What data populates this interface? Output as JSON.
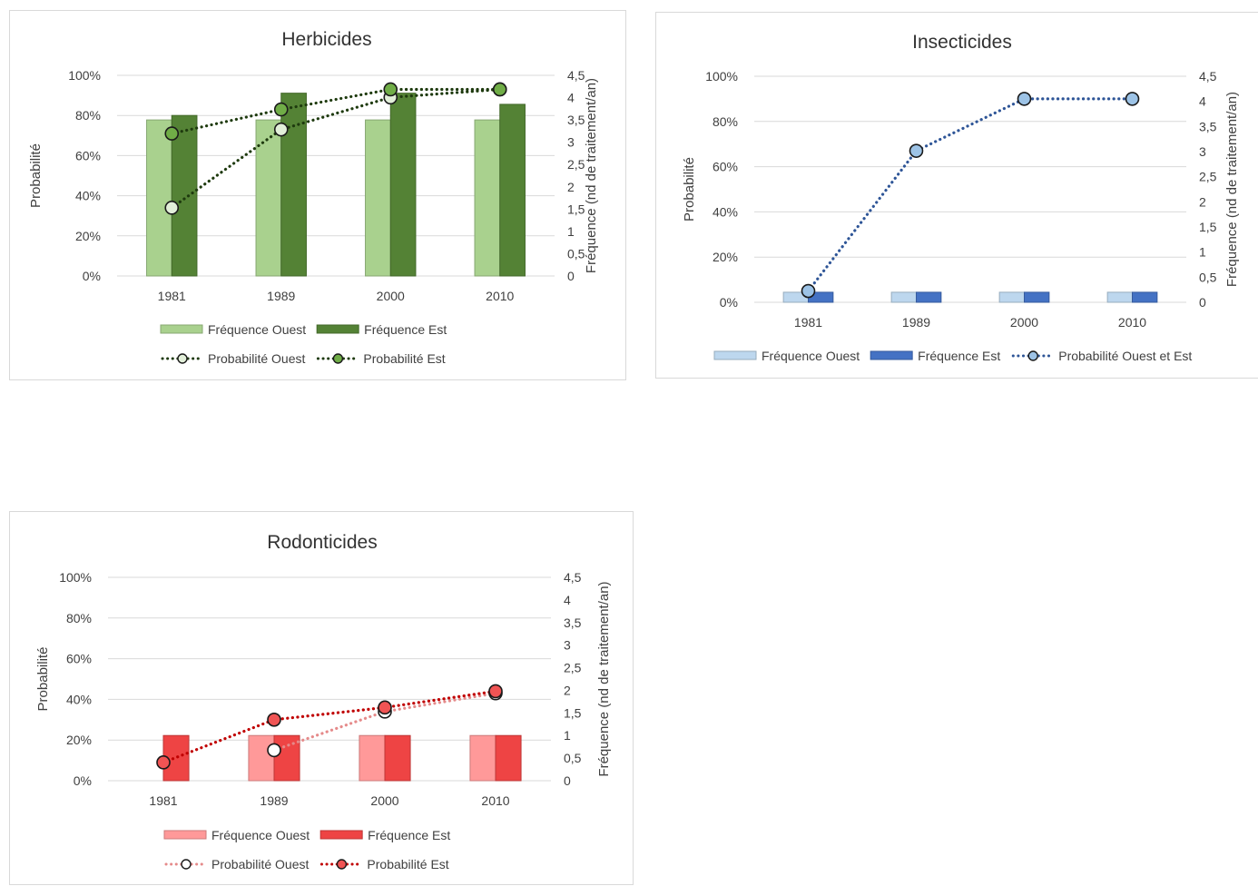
{
  "chart_data": [
    {
      "type": "bar",
      "title": "Herbicides",
      "ylabel": "Probabilité",
      "y2label": "Fréquence (nd de traitement/an)",
      "categories": [
        "1981",
        "1989",
        "2000",
        "2010"
      ],
      "ylim": [
        0,
        100
      ],
      "y_ticks": [
        "0%",
        "20%",
        "40%",
        "60%",
        "80%",
        "100%"
      ],
      "y2lim": [
        0,
        4.5
      ],
      "y2_ticks": [
        "0",
        "0,5",
        "1",
        "1,5",
        "2",
        "2,5",
        "3",
        "3,5",
        "4",
        "4,5"
      ],
      "series": [
        {
          "name": "Fréquence Ouest",
          "kind": "bar",
          "axis": "y2",
          "color": "#a9d18e",
          "values": [
            3.5,
            3.5,
            3.5,
            3.5
          ]
        },
        {
          "name": "Fréquence Est",
          "kind": "bar",
          "axis": "y2",
          "color": "#548235",
          "values": [
            3.6,
            4.1,
            4.1,
            3.85
          ]
        },
        {
          "name": "Probabilité Ouest",
          "kind": "line",
          "axis": "y",
          "color": "#1e3a0e",
          "marker": "#e2efd9",
          "values": [
            34,
            73,
            89,
            93
          ]
        },
        {
          "name": "Probabilité Est",
          "kind": "line",
          "axis": "y",
          "color": "#1e3a0e",
          "marker": "#70ad47",
          "values": [
            71,
            83,
            93,
            93
          ]
        }
      ],
      "legend_rows": [
        [
          "Fréquence Ouest",
          "Fréquence Est"
        ],
        [
          "Probabilité Ouest",
          "Probabilité Est"
        ]
      ],
      "legend": "bottom",
      "grid": true
    },
    {
      "type": "bar",
      "title": "Insecticides",
      "ylabel": "Probabilité",
      "y2label": "Fréquence (nd de traitement/an)",
      "categories": [
        "1981",
        "1989",
        "2000",
        "2010"
      ],
      "ylim": [
        0,
        100
      ],
      "y_ticks": [
        "0%",
        "20%",
        "40%",
        "60%",
        "80%",
        "100%"
      ],
      "y2lim": [
        0,
        4.5
      ],
      "y2_ticks": [
        "0",
        "0,5",
        "1",
        "1,5",
        "2",
        "2,5",
        "3",
        "3,5",
        "4",
        "4,5"
      ],
      "series": [
        {
          "name": "Fréquence Ouest",
          "kind": "bar",
          "axis": "y2",
          "color": "#bdd7ee",
          "values": [
            0.2,
            0.2,
            0.2,
            0.2
          ]
        },
        {
          "name": "Fréquence Est",
          "kind": "bar",
          "axis": "y2",
          "color": "#4472c4",
          "values": [
            0.2,
            0.2,
            0.2,
            0.2
          ]
        },
        {
          "name": "Probabilité Ouest et Est",
          "kind": "line",
          "axis": "y",
          "color": "#2e5597",
          "marker": "#9dc3e6",
          "values": [
            5,
            67,
            90,
            90
          ]
        }
      ],
      "legend_rows": [
        [
          "Fréquence Ouest",
          "Fréquence Est",
          "Probabilité Ouest et Est"
        ]
      ],
      "legend": "bottom",
      "grid": true
    },
    {
      "type": "bar",
      "title": "Rodonticides",
      "ylabel": "Probabilité",
      "y2label": "Fréquence (nd de traitement/an)",
      "categories": [
        "1981",
        "1989",
        "2000",
        "2010"
      ],
      "ylim": [
        0,
        100
      ],
      "y_ticks": [
        "0%",
        "20%",
        "40%",
        "60%",
        "80%",
        "100%"
      ],
      "y2lim": [
        0,
        4.5
      ],
      "y2_ticks": [
        "0",
        "0,5",
        "1",
        "1,5",
        "2",
        "2,5",
        "3",
        "3,5",
        "4",
        "4,5"
      ],
      "series": [
        {
          "name": "Fréquence Ouest",
          "kind": "bar",
          "axis": "y2",
          "color": "#ff9999",
          "values": [
            0,
            1,
            1,
            1
          ]
        },
        {
          "name": "Fréquence Est",
          "kind": "bar",
          "axis": "y2",
          "color": "#ee4444",
          "values": [
            1,
            1,
            1,
            1
          ]
        },
        {
          "name": "Probabilité Ouest",
          "kind": "line",
          "axis": "y",
          "color": "#e58a8a",
          "marker": "#ffffff",
          "values": [
            null,
            15,
            34,
            43
          ]
        },
        {
          "name": "Probabilité Est",
          "kind": "line",
          "axis": "y",
          "color": "#c00000",
          "marker": "#f05454",
          "values": [
            9,
            30,
            36,
            44
          ]
        }
      ],
      "legend_rows": [
        [
          "Fréquence Ouest",
          "Fréquence Est"
        ],
        [
          "Probabilité Ouest",
          "Probabilité Est"
        ]
      ],
      "legend": "bottom",
      "grid": true
    }
  ]
}
